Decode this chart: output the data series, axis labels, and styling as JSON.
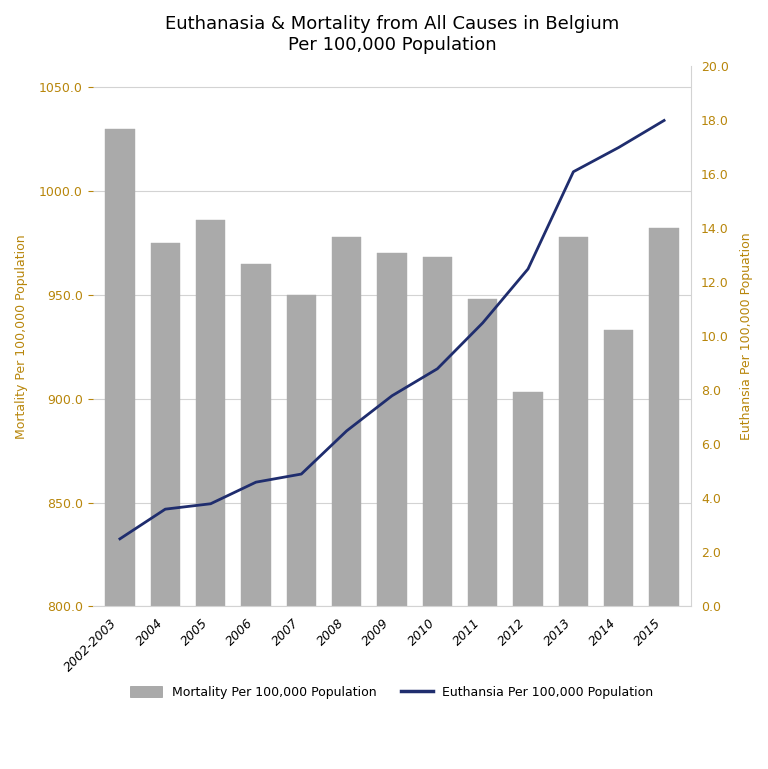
{
  "title_line1": "Euthanasia & Mortality from All Causes in Belgium",
  "title_line2": "Per 100,000 Population",
  "categories": [
    "2002-2003",
    "2004",
    "2005",
    "2006",
    "2007",
    "2008",
    "2009",
    "2010",
    "2011",
    "2012",
    "2013",
    "2014",
    "2015"
  ],
  "mortality": [
    1030,
    975,
    986,
    965,
    950,
    978,
    970,
    968,
    948,
    903,
    978,
    933,
    982
  ],
  "euthanasia": [
    2.5,
    3.6,
    3.8,
    4.6,
    4.9,
    6.5,
    7.8,
    8.8,
    10.5,
    12.5,
    16.1,
    17.0,
    18.0
  ],
  "bar_color": "#aaaaaa",
  "line_color": "#1f2d6e",
  "left_ylim": [
    800,
    1060
  ],
  "right_ylim": [
    0,
    20
  ],
  "left_yticks": [
    800.0,
    850.0,
    900.0,
    950.0,
    1000.0,
    1050.0
  ],
  "right_yticks": [
    0.0,
    2.0,
    4.0,
    6.0,
    8.0,
    10.0,
    12.0,
    14.0,
    16.0,
    18.0,
    20.0
  ],
  "left_ylabel": "Mortality Per 100,000 Population",
  "right_ylabel": "Euthansia Per 100,000 Popuation",
  "left_tick_color": "#b8860b",
  "right_tick_color": "#b8860b",
  "left_ylabel_color": "#b8860b",
  "right_ylabel_color": "#b8860b",
  "background_color": "#ffffff",
  "legend_mortality_label": "Mortality Per 100,000 Population",
  "legend_euthanasia_label": "Euthansia Per 100,000 Population",
  "title_fontsize": 13,
  "axis_fontsize": 9,
  "tick_fontsize": 9,
  "grid_color": "#d3d3d3",
  "bar_edgecolor": "#aaaaaa",
  "figsize": [
    7.68,
    7.69
  ],
  "dpi": 100
}
